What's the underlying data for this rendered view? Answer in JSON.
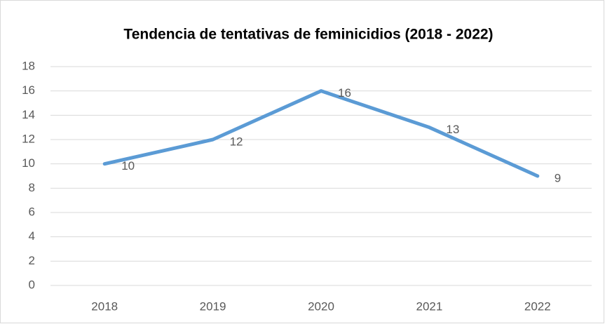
{
  "chart_data": {
    "type": "line",
    "title": "Tendencia de tentativas de feminicidios (2018 - 2022)",
    "categories": [
      "2018",
      "2019",
      "2020",
      "2021",
      "2022"
    ],
    "values": [
      10,
      12,
      16,
      13,
      9
    ],
    "color": "#5b9bd5",
    "ylim": [
      0,
      18
    ],
    "yticks": [
      0,
      2,
      4,
      6,
      8,
      10,
      12,
      14,
      16,
      18
    ],
    "grid": true,
    "data_labels": true
  }
}
